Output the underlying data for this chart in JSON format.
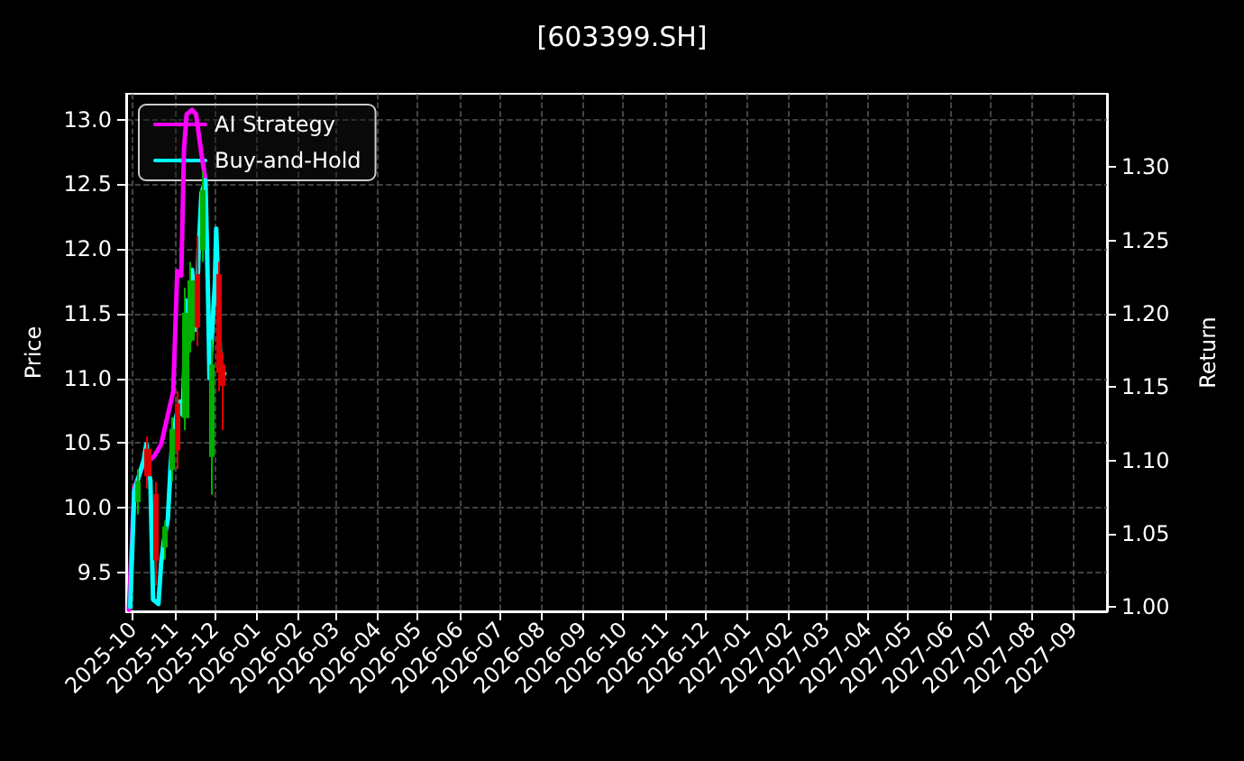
{
  "chart_data": {
    "type": "candlestick",
    "title": "[603399.SH]",
    "ylabel": "Price",
    "y2label": "Return",
    "x": [
      "2025-10-05",
      "2025-10-12",
      "2025-10-18",
      "2025-10-25",
      "2025-10-30",
      "2025-11-03",
      "2025-11-09",
      "2025-11-13",
      "2025-11-18",
      "2025-11-22",
      "2025-11-29",
      "2025-12-04",
      "2025-12-07"
    ],
    "ohlc": [
      [
        10.05,
        10.3,
        9.95,
        10.2
      ],
      [
        10.45,
        10.55,
        10.15,
        10.25
      ],
      [
        10.1,
        10.2,
        9.4,
        9.6
      ],
      [
        9.7,
        9.9,
        9.6,
        9.85
      ],
      [
        10.3,
        10.7,
        10.2,
        10.6
      ],
      [
        10.8,
        10.9,
        10.3,
        10.45
      ],
      [
        10.7,
        11.7,
        10.6,
        11.5
      ],
      [
        11.3,
        11.9,
        11.2,
        11.75
      ],
      [
        11.8,
        12.1,
        11.25,
        11.4
      ],
      [
        12.0,
        12.6,
        11.9,
        12.45
      ],
      [
        10.4,
        11.3,
        10.1,
        11.1
      ],
      [
        11.8,
        11.9,
        10.9,
        11.05
      ],
      [
        11.1,
        11.2,
        10.6,
        10.95
      ]
    ],
    "series": [
      {
        "name": "AI Strategy",
        "type": "line",
        "axis": "y2",
        "color": "#ff00ff",
        "x": [
          "2025-09-28",
          "2025-10-02",
          "2025-10-09",
          "2025-10-11",
          "2025-10-17",
          "2025-10-22",
          "2025-10-27",
          "2025-10-31",
          "2025-11-03",
          "2025-11-06",
          "2025-11-08",
          "2025-11-10",
          "2025-11-14",
          "2025-11-17",
          "2025-11-21",
          "2025-11-24"
        ],
        "values": [
          0.998,
          1.081,
          1.098,
          1.098,
          1.103,
          1.111,
          1.131,
          1.147,
          1.229,
          1.226,
          1.312,
          1.336,
          1.339,
          1.336,
          1.309,
          1.291
        ]
      },
      {
        "name": "Buy-and-Hold",
        "type": "line",
        "axis": "y2",
        "color": "#00ffff",
        "x": [
          "2025-09-29",
          "2025-10-02",
          "2025-10-09",
          "2025-10-11",
          "2025-10-13",
          "2025-10-14",
          "2025-10-16",
          "2025-10-20",
          "2025-10-22",
          "2025-10-24",
          "2025-10-27",
          "2025-10-29",
          "2025-10-31",
          "2025-11-05",
          "2025-11-07",
          "2025-11-10",
          "2025-11-12",
          "2025-11-14",
          "2025-11-17",
          "2025-11-19",
          "2025-11-21",
          "2025-11-24",
          "2025-11-26",
          "2025-11-27",
          "2025-12-01",
          "2025-12-02",
          "2025-12-03",
          "2025-12-05",
          "2025-12-08"
        ],
        "values": [
          1.0,
          1.079,
          1.1,
          1.111,
          1.091,
          1.086,
          1.005,
          1.002,
          1.03,
          1.045,
          1.06,
          1.095,
          1.122,
          1.14,
          1.131,
          1.209,
          1.181,
          1.23,
          1.189,
          1.245,
          1.282,
          1.291,
          1.209,
          1.156,
          1.221,
          1.258,
          1.23,
          1.165,
          1.159
        ]
      }
    ],
    "xlim": [
      "2025-09-26",
      "2027-09-26"
    ],
    "xticks": [
      {
        "value": "2025-10-01",
        "label": "2025-10"
      },
      {
        "value": "2025-11-01",
        "label": "2025-11"
      },
      {
        "value": "2025-12-01",
        "label": "2025-12"
      },
      {
        "value": "2026-01-01",
        "label": "2026-01"
      },
      {
        "value": "2026-02-01",
        "label": "2026-02"
      },
      {
        "value": "2026-03-01",
        "label": "2026-03"
      },
      {
        "value": "2026-04-01",
        "label": "2026-04"
      },
      {
        "value": "2026-05-01",
        "label": "2026-05"
      },
      {
        "value": "2026-06-01",
        "label": "2026-06"
      },
      {
        "value": "2026-07-01",
        "label": "2026-07"
      },
      {
        "value": "2026-08-01",
        "label": "2026-08"
      },
      {
        "value": "2026-09-01",
        "label": "2026-09"
      },
      {
        "value": "2026-10-01",
        "label": "2026-10"
      },
      {
        "value": "2026-11-01",
        "label": "2026-11"
      },
      {
        "value": "2026-12-01",
        "label": "2026-12"
      },
      {
        "value": "2027-01-01",
        "label": "2027-01"
      },
      {
        "value": "2027-02-01",
        "label": "2027-02"
      },
      {
        "value": "2027-03-01",
        "label": "2027-03"
      },
      {
        "value": "2027-04-01",
        "label": "2027-04"
      },
      {
        "value": "2027-05-01",
        "label": "2027-05"
      },
      {
        "value": "2027-06-01",
        "label": "2027-06"
      },
      {
        "value": "2027-07-01",
        "label": "2027-07"
      },
      {
        "value": "2027-08-01",
        "label": "2027-08"
      },
      {
        "value": "2027-09-01",
        "label": "2027-09"
      }
    ],
    "ylim": [
      9.2,
      13.2
    ],
    "yticks": [
      {
        "value": 9.5,
        "label": "9.5"
      },
      {
        "value": 10,
        "label": "10.0"
      },
      {
        "value": 10.5,
        "label": "10.5"
      },
      {
        "value": 11,
        "label": "11.0"
      },
      {
        "value": 11.5,
        "label": "11.5"
      },
      {
        "value": 12,
        "label": "12.0"
      },
      {
        "value": 12.5,
        "label": "12.5"
      },
      {
        "value": 13,
        "label": "13.0"
      }
    ],
    "y2lim": [
      0.997,
      1.35
    ],
    "y2ticks": [
      {
        "value": 1,
        "label": "1.00"
      },
      {
        "value": 1.05,
        "label": "1.05"
      },
      {
        "value": 1.1,
        "label": "1.10"
      },
      {
        "value": 1.15,
        "label": "1.15"
      },
      {
        "value": 1.2,
        "label": "1.20"
      },
      {
        "value": 1.25,
        "label": "1.25"
      },
      {
        "value": 1.3,
        "label": "1.30"
      }
    ],
    "grid": true,
    "legend": "top left"
  }
}
